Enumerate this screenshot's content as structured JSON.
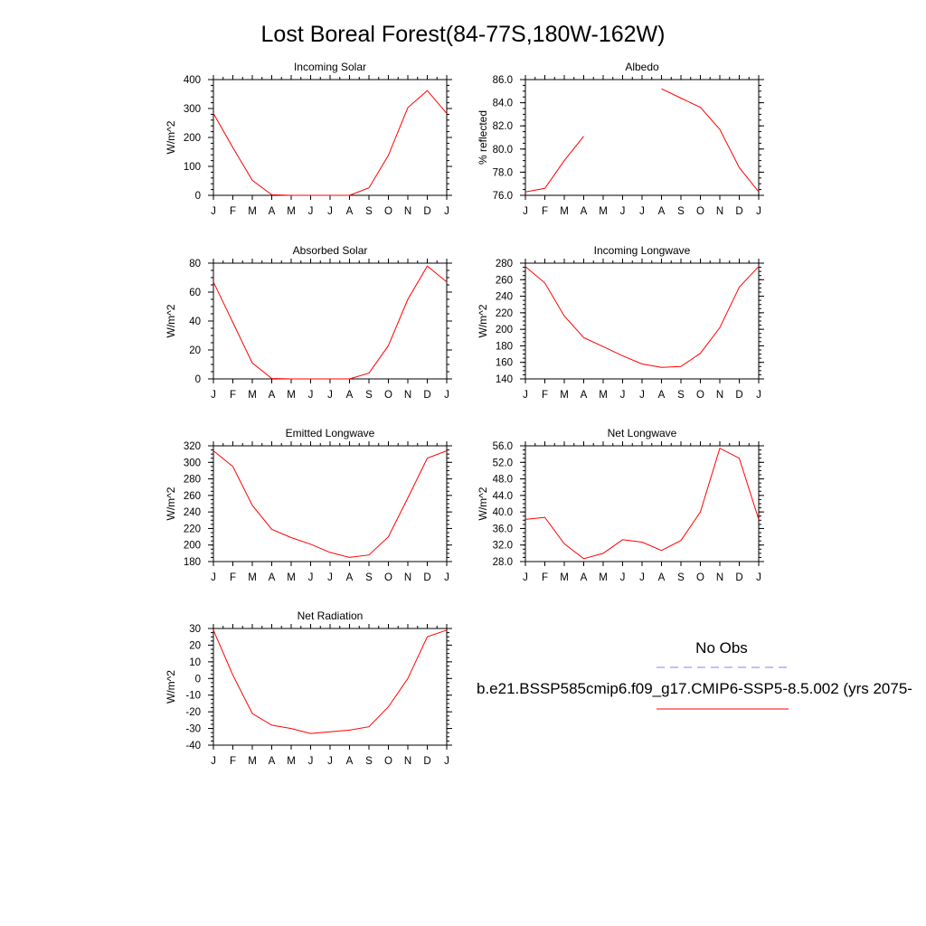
{
  "title": "Lost Boreal Forest(84-77S,180W-162W)",
  "months": [
    "J",
    "F",
    "M",
    "A",
    "M",
    "J",
    "J",
    "A",
    "S",
    "O",
    "N",
    "D",
    "J"
  ],
  "chart_data": [
    {
      "type": "line",
      "title": "Incoming Solar",
      "ylabel": "W/m^2",
      "ylim": [
        0,
        400
      ],
      "yticks": [
        0,
        100,
        200,
        300,
        400
      ],
      "yticklabels": [
        "0",
        "100",
        "200",
        "300",
        "400"
      ],
      "yminor": 20,
      "series": [
        {
          "color": "#ff0000",
          "values": [
            283,
            165,
            52,
            2,
            0,
            0,
            0,
            0,
            26,
            138,
            303,
            362,
            283
          ]
        }
      ]
    },
    {
      "type": "line",
      "title": "Albedo",
      "ylabel": "% reflected",
      "ylim": [
        76,
        86
      ],
      "yticks": [
        76,
        78,
        80,
        82,
        84,
        86
      ],
      "yticklabels": [
        "76.0",
        "78.0",
        "80.0",
        "82.0",
        "84.0",
        "86.0"
      ],
      "yminor": 0.5,
      "series": [
        {
          "color": "#ff0000",
          "values": [
            76.3,
            76.6,
            79.0,
            81.1,
            null,
            null,
            null,
            85.2,
            84.4,
            83.6,
            81.7,
            78.4,
            76.3
          ]
        }
      ]
    },
    {
      "type": "line",
      "title": "Absorbed Solar",
      "ylabel": "W/m^2",
      "ylim": [
        0,
        80
      ],
      "yticks": [
        0,
        20,
        40,
        60,
        80
      ],
      "yticklabels": [
        "0",
        "20",
        "40",
        "60",
        "80"
      ],
      "yminor": 5,
      "series": [
        {
          "color": "#ff0000",
          "values": [
            67,
            39,
            11,
            0.3,
            0,
            0,
            0,
            0,
            4,
            23,
            55,
            78,
            67
          ]
        }
      ]
    },
    {
      "type": "line",
      "title": "Incoming Longwave",
      "ylabel": "W/m^2",
      "ylim": [
        140,
        280
      ],
      "yticks": [
        140,
        160,
        180,
        200,
        220,
        240,
        260,
        280
      ],
      "yticklabels": [
        "140",
        "160",
        "180",
        "200",
        "220",
        "240",
        "260",
        "280"
      ],
      "yminor": 5,
      "series": [
        {
          "color": "#ff0000",
          "values": [
            276,
            256,
            216,
            190,
            179,
            168,
            158,
            154,
            155,
            171,
            202,
            251,
            276
          ]
        }
      ]
    },
    {
      "type": "line",
      "title": "Emitted Longwave",
      "ylabel": "W/m^2",
      "ylim": [
        180,
        320
      ],
      "yticks": [
        180,
        200,
        220,
        240,
        260,
        280,
        300,
        320
      ],
      "yticklabels": [
        "180",
        "200",
        "220",
        "240",
        "260",
        "280",
        "300",
        "320"
      ],
      "yminor": 5,
      "series": [
        {
          "color": "#ff0000",
          "values": [
            314,
            295,
            248,
            219,
            209,
            201,
            191,
            185,
            188,
            210,
            257,
            305,
            314
          ]
        }
      ]
    },
    {
      "type": "line",
      "title": "Net Longwave",
      "ylabel": "W/m^2",
      "ylim": [
        28,
        56
      ],
      "yticks": [
        28,
        32,
        36,
        40,
        44,
        48,
        52,
        56
      ],
      "yticklabels": [
        "28.0",
        "32.0",
        "36.0",
        "40.0",
        "44.0",
        "48.0",
        "52.0",
        "56.0"
      ],
      "yminor": 1,
      "series": [
        {
          "color": "#ff0000",
          "values": [
            38.2,
            38.7,
            32.3,
            28.7,
            30.0,
            33.3,
            32.7,
            30.7,
            33.1,
            40.0,
            55.4,
            53.0,
            38.2
          ]
        }
      ]
    },
    {
      "type": "line",
      "title": "Net Radiation",
      "ylabel": "W/m^2",
      "ylim": [
        -40,
        30
      ],
      "yticks": [
        -40,
        -30,
        -20,
        -10,
        0,
        10,
        20,
        30
      ],
      "yticklabels": [
        "-40",
        "-30",
        "-20",
        "-10",
        "0",
        "10",
        "20",
        "30"
      ],
      "yminor": 2.5,
      "series": [
        {
          "color": "#ff0000",
          "values": [
            29,
            2,
            -21,
            -28,
            -30,
            -33,
            -32,
            -31,
            -29,
            -17,
            0,
            25,
            29
          ]
        }
      ]
    }
  ],
  "legend": {
    "items": [
      {
        "label": "No Obs",
        "color": "#8080ff",
        "style": "dashed"
      },
      {
        "label": "b.e21.BSSP585cmip6.f09_g17.CMIP6-SSP5-8.5.002 (yrs 2075-",
        "color": "#ff0000",
        "style": "solid"
      }
    ]
  }
}
